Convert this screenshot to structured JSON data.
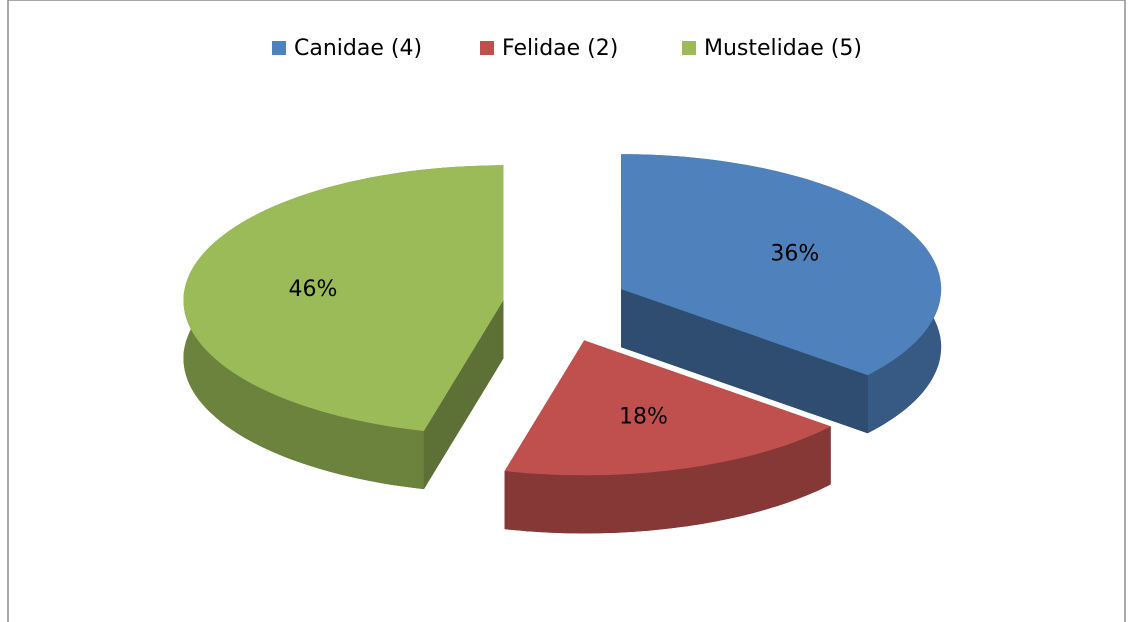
{
  "chart_data": {
    "type": "pie3d",
    "categories": [
      "Canidae (4)",
      "Felidae (2)",
      "Mustelidae (5)"
    ],
    "values": [
      36,
      18,
      46
    ],
    "value_labels": [
      "36%",
      "18%",
      "46%"
    ],
    "colors": [
      "#4f81bd",
      "#c0504d",
      "#9bbb59"
    ],
    "legend": "top"
  }
}
